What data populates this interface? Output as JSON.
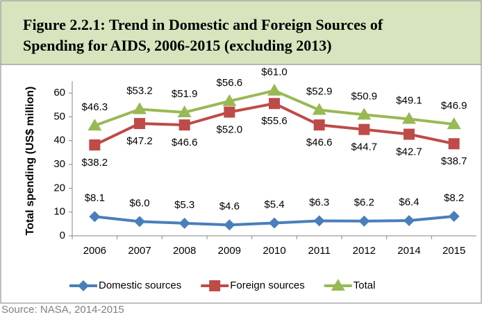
{
  "chart_data": {
    "type": "line",
    "title": [
      "Figure 2.2.1: Trend in Domestic and Foreign Sources of",
      "Spending for AIDS, 2006-2015 (excluding 2013)"
    ],
    "y_label": "Total spending (US$ million)",
    "source": "Source:  NASA, 2014-2015",
    "categories": [
      "2006",
      "2007",
      "2008",
      "2009",
      "2010",
      "2011",
      "2012",
      "2014",
      "2015"
    ],
    "ylim": [
      0,
      65
    ],
    "yticks": [
      0,
      10,
      20,
      30,
      40,
      50,
      60
    ],
    "legend": "bottom",
    "series": [
      {
        "name": "Domestic sources",
        "color": "#4a7ebb",
        "marker": "diamond",
        "label_position": "above",
        "values": [
          8.1,
          6.0,
          5.3,
          4.6,
          5.4,
          6.3,
          6.2,
          6.4,
          8.2
        ],
        "value_labels": [
          "$8.1",
          "$6.0",
          "$5.3",
          "$4.6",
          "$5.4",
          "$6.3",
          "$6.2",
          "$6.4",
          "$8.2"
        ]
      },
      {
        "name": "Foreign sources",
        "color": "#be4b48",
        "marker": "square",
        "label_position": "below",
        "values": [
          38.2,
          47.2,
          46.6,
          52.0,
          55.6,
          46.6,
          44.7,
          42.7,
          38.7
        ],
        "value_labels": [
          "$38.2",
          "$47.2",
          "$46.6",
          "$52.0",
          "$55.6",
          "$46.6",
          "$44.7",
          "$42.7",
          "$38.7"
        ]
      },
      {
        "name": "Total",
        "color": "#98b954",
        "marker": "triangle",
        "label_position": "above",
        "values": [
          46.3,
          53.2,
          51.9,
          56.6,
          61.0,
          52.9,
          50.9,
          49.1,
          46.9
        ],
        "value_labels": [
          "$46.3",
          "$53.2",
          "$51.9",
          "$56.6",
          "$61.0",
          "$52.9",
          "$50.9",
          "$49.1",
          "$46.9"
        ]
      }
    ]
  }
}
